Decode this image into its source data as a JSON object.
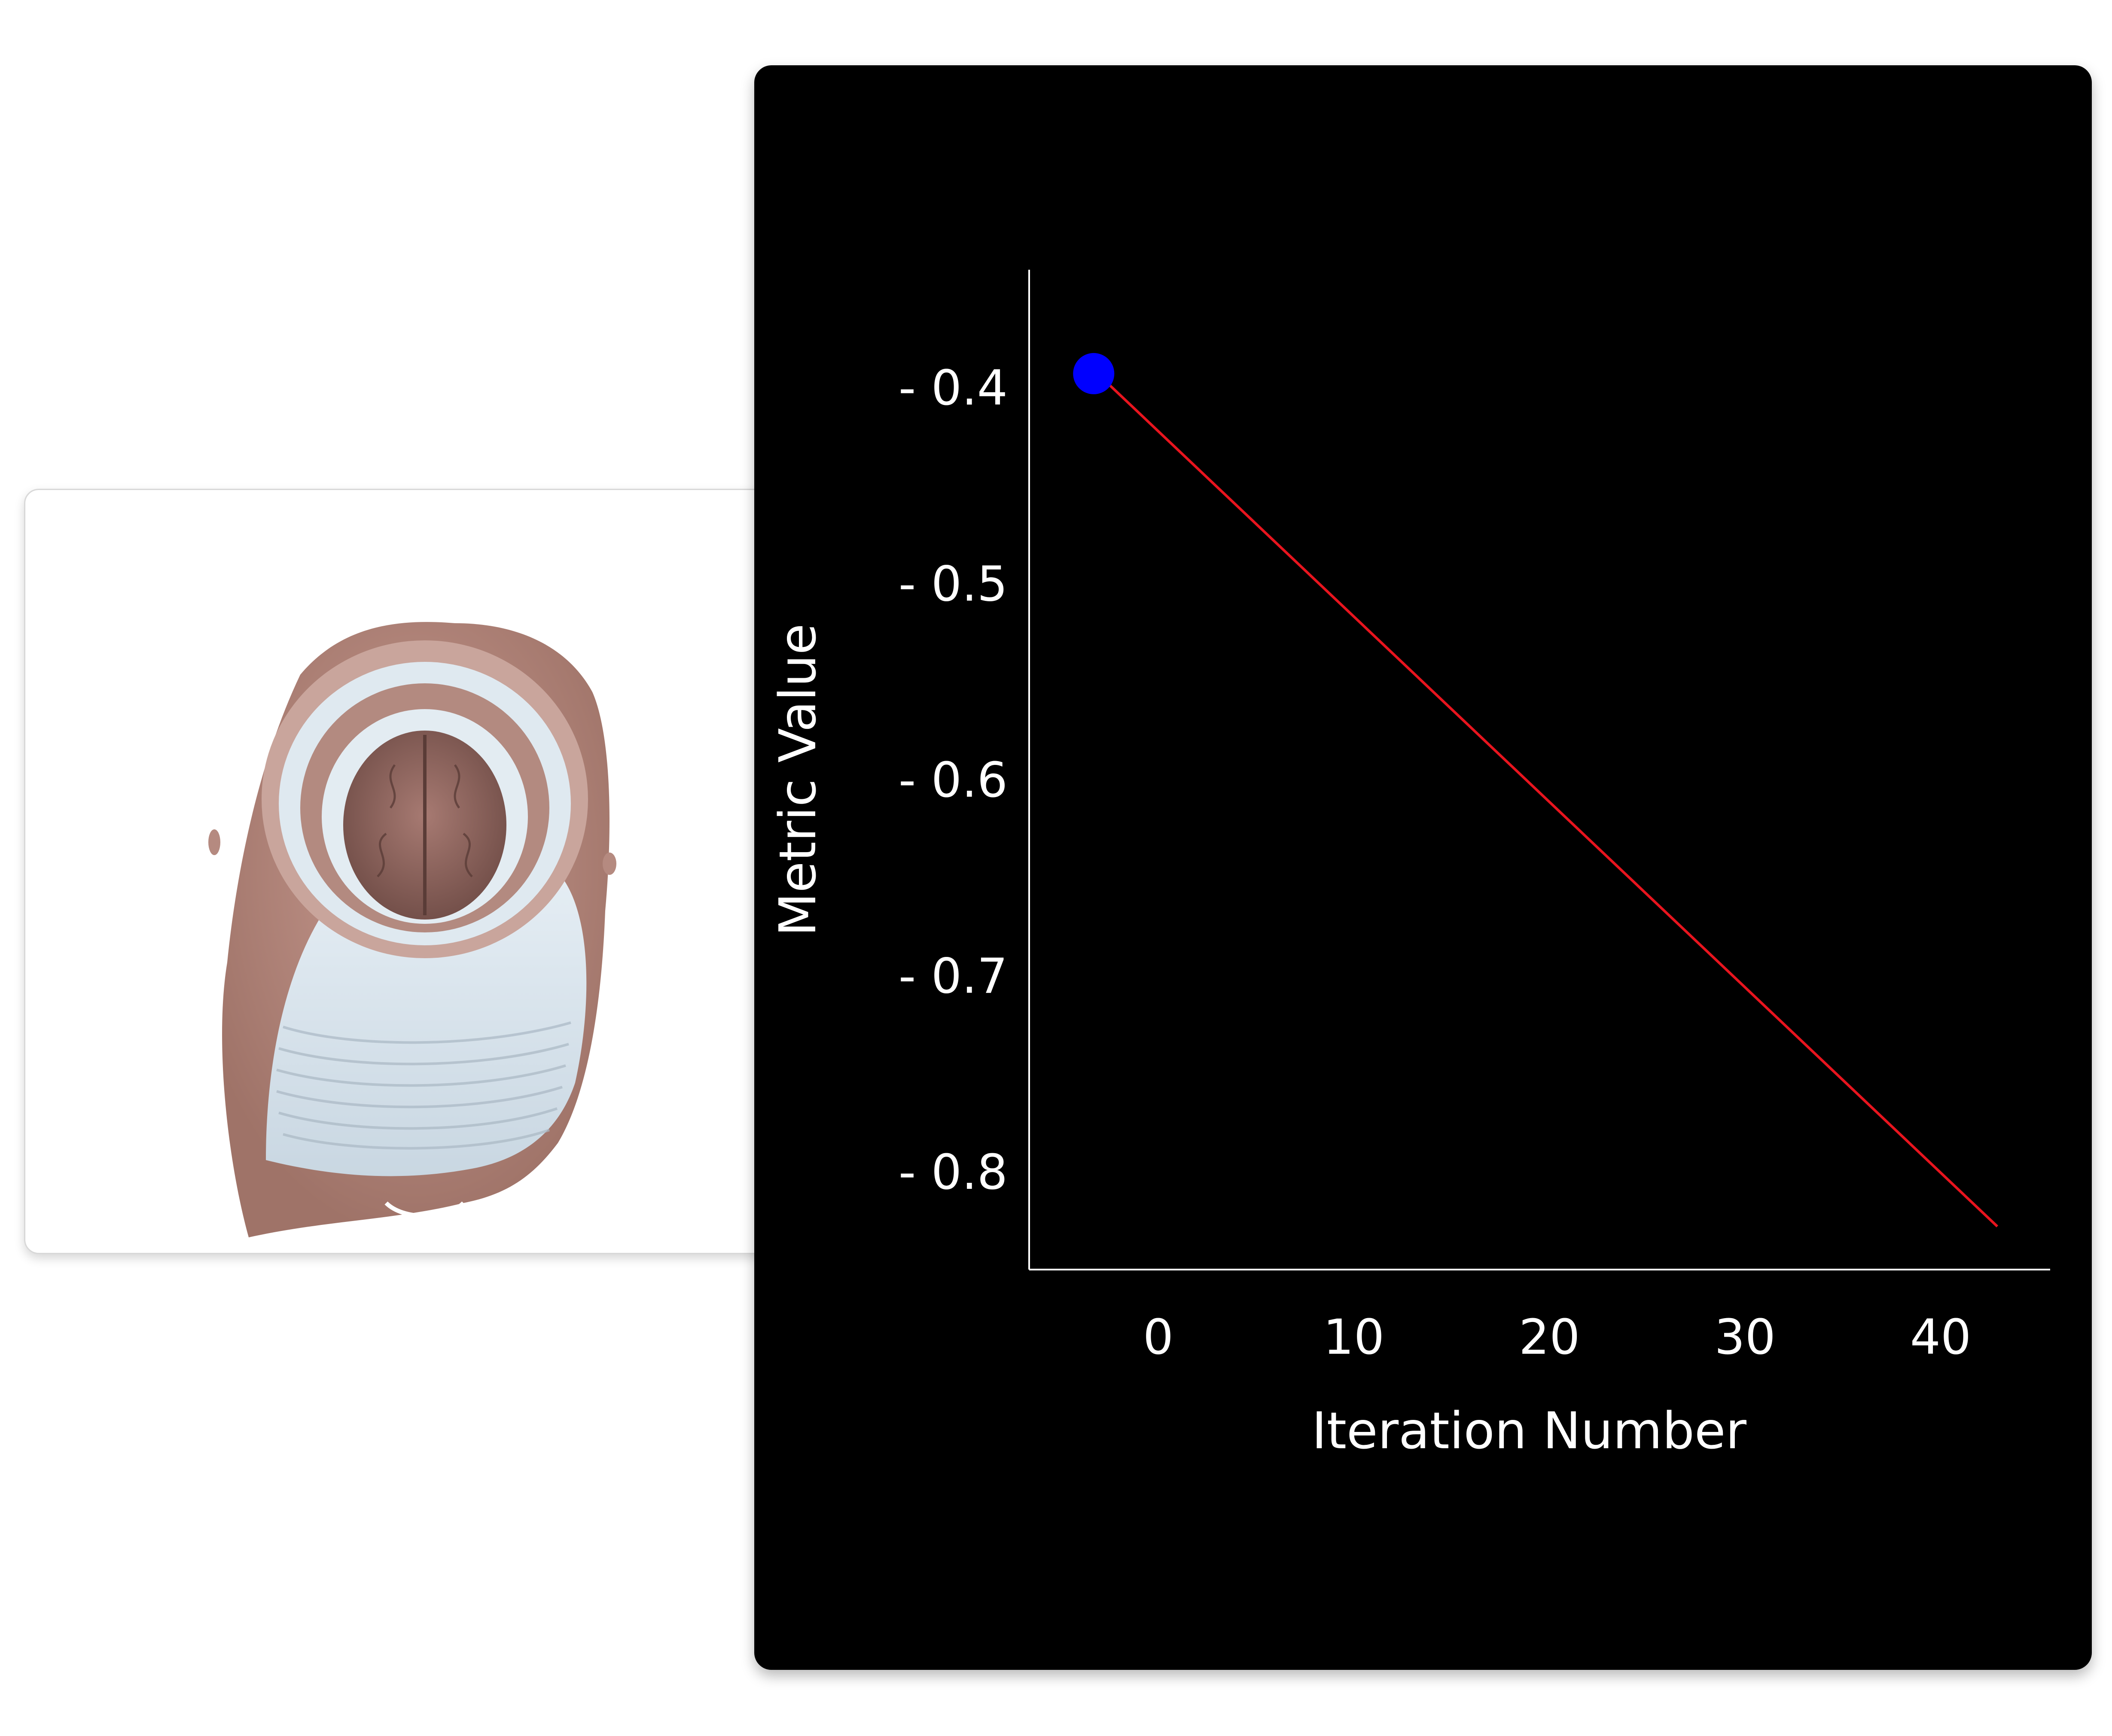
{
  "render_view": {
    "image": "3d-head-surface-render",
    "colors": {
      "skin": "#b58a80",
      "bone": "#d7e3ec",
      "brain": "#8a5e58"
    }
  },
  "chart_data": {
    "type": "line",
    "title": "",
    "xlabel": "Iteration Number",
    "ylabel": "Metric Value",
    "x_ticks": [
      0,
      10,
      20,
      30,
      40
    ],
    "x_tick_labels": [
      "0",
      "10",
      "20",
      "30",
      "40"
    ],
    "y_ticks": [
      -0.4,
      -0.5,
      -0.6,
      -0.7,
      -0.8
    ],
    "y_tick_labels": [
      "- 0.4",
      "- 0.5",
      "- 0.6",
      "- 0.7",
      "- 0.8"
    ],
    "xlim": [
      -6.6,
      45.6
    ],
    "ylim": [
      -0.85,
      -0.34
    ],
    "series": [
      {
        "color": "#e8141e",
        "x": [
          -3,
          42.9
        ],
        "y": [
          -0.394,
          -0.828
        ]
      }
    ],
    "current_point": {
      "x": -3.3,
      "y": -0.393,
      "color": "#0000ff"
    },
    "background": "#000000",
    "grid": false
  }
}
